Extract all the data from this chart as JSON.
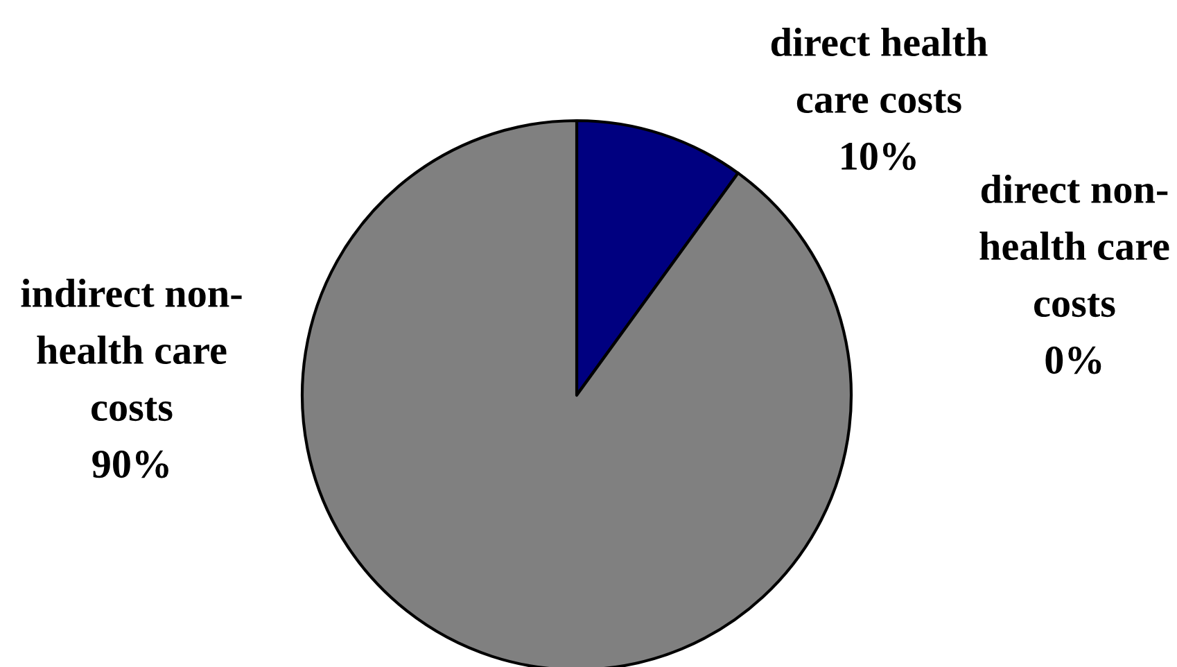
{
  "chart_data": {
    "type": "pie",
    "categories": [
      "direct health\ncare costs",
      "direct non-\nhealth care\ncosts",
      "indirect non-\nhealth care\ncosts"
    ],
    "values": [
      10,
      0,
      90
    ],
    "value_labels": [
      "10%",
      "0%",
      "90%"
    ],
    "colors": [
      "#000080",
      "#ffffcc",
      "#808080"
    ]
  }
}
